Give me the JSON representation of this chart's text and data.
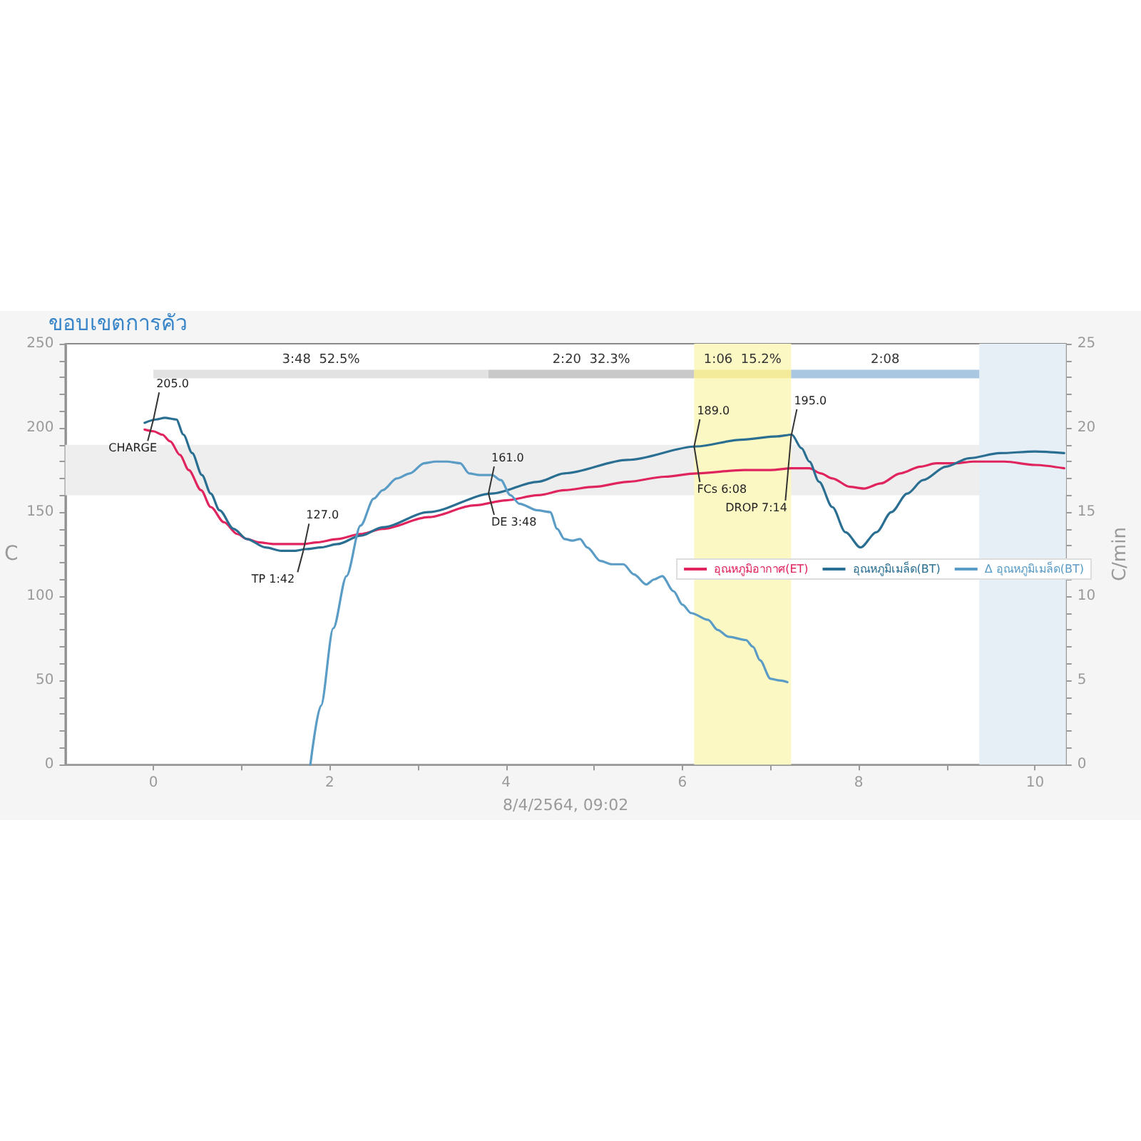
{
  "chart_data": {
    "type": "line",
    "title": "ขอบเขตการคั่ว",
    "xlabel": "8/4/2564, 09:02",
    "ylabel": "C",
    "y2label": "C/min",
    "xlim": [
      -1,
      10.35
    ],
    "xticks": [
      0,
      {
        "value": 1,
        "label": null
      },
      2,
      {
        "value": 3,
        "label": null
      },
      4,
      {
        "value": 5,
        "label": null
      },
      6,
      {
        "value": 7,
        "label": null
      },
      8,
      {
        "value": 9,
        "label": null
      },
      10
    ],
    "ylim": [
      0,
      250
    ],
    "yticks": [
      0,
      {
        "value": 10,
        "label": null
      },
      {
        "value": 20,
        "label": null
      },
      {
        "value": 30,
        "label": null
      },
      {
        "value": 40,
        "label": null
      },
      50,
      {
        "value": 60,
        "label": null
      },
      {
        "value": 70,
        "label": null
      },
      {
        "value": 80,
        "label": null
      },
      {
        "value": 90,
        "label": null
      },
      100,
      {
        "value": 110,
        "label": null
      },
      {
        "value": 120,
        "label": null
      },
      {
        "value": 130,
        "label": null
      },
      {
        "value": 140,
        "label": null
      },
      150,
      {
        "value": 160,
        "label": null
      },
      {
        "value": 170,
        "label": null
      },
      {
        "value": 180,
        "label": null
      },
      {
        "value": 190,
        "label": null
      },
      200,
      {
        "value": 210,
        "label": null
      },
      {
        "value": 220,
        "label": null
      },
      {
        "value": 230,
        "label": null
      },
      {
        "value": 240,
        "label": null
      },
      250
    ],
    "y2lim": [
      0,
      25
    ],
    "y2ticks": [
      0,
      {
        "value": 1,
        "label": null
      },
      {
        "value": 2,
        "label": null
      },
      {
        "value": 3,
        "label": null
      },
      {
        "value": 4,
        "label": null
      },
      5,
      {
        "value": 6,
        "label": null
      },
      {
        "value": 7,
        "label": null
      },
      {
        "value": 8,
        "label": null
      },
      {
        "value": 9,
        "label": null
      },
      10,
      {
        "value": 11,
        "label": null
      },
      {
        "value": 12,
        "label": null
      },
      {
        "value": 13,
        "label": null
      },
      {
        "value": 14,
        "label": null
      },
      15,
      {
        "value": 16,
        "label": null
      },
      {
        "value": 17,
        "label": null
      },
      {
        "value": 18,
        "label": null
      },
      {
        "value": 19,
        "label": null
      },
      20,
      {
        "value": 21,
        "label": null
      },
      {
        "value": 22,
        "label": null
      },
      {
        "value": 23,
        "label": null
      },
      {
        "value": 24,
        "label": null
      },
      25
    ],
    "legend": "right",
    "series": [
      {
        "name": "อุณหภูมิอากาศ(ET)",
        "color": "#e0245e",
        "x": [
          -0.1,
          0,
          0.1,
          0.19,
          0.3,
          0.4,
          0.54,
          0.65,
          0.8,
          0.95,
          1.06,
          1.2,
          1.37,
          1.55,
          1.7,
          1.85,
          2.09,
          2.35,
          2.6,
          3.12,
          3.64,
          4.0,
          4.36,
          4.66,
          5.0,
          5.38,
          5.8,
          6.16,
          6.7,
          7.0,
          7.24,
          7.44,
          7.57,
          7.7,
          7.9,
          8.06,
          8.25,
          8.47,
          8.7,
          8.88,
          9.1,
          9.3,
          9.65,
          10.0,
          10.33
        ],
        "values": [
          199,
          198,
          196,
          192,
          184,
          175,
          163,
          153,
          144,
          137,
          134,
          132,
          131,
          131,
          131,
          132,
          134,
          137,
          140,
          147,
          154,
          157,
          160,
          163,
          165,
          168,
          171,
          173,
          175,
          175,
          176,
          176,
          173,
          170,
          165,
          164,
          167,
          173,
          177,
          179,
          179,
          180,
          180,
          178,
          176
        ]
      },
      {
        "name": "อุณหภูมิเมล็ด(BT)",
        "color": "#2a6f92",
        "x": [
          -0.1,
          0.03,
          0.13,
          0.26,
          0.34,
          0.44,
          0.55,
          0.65,
          0.75,
          0.91,
          1.06,
          1.27,
          1.45,
          1.6,
          1.73,
          1.9,
          2.09,
          2.35,
          2.6,
          3.12,
          3.84,
          4.36,
          4.66,
          5.38,
          6.16,
          6.67,
          7.08,
          7.24,
          7.35,
          7.44,
          7.55,
          7.7,
          7.85,
          8.02,
          8.2,
          8.37,
          8.55,
          8.73,
          8.99,
          9.25,
          9.6,
          10.0,
          10.33
        ],
        "values": [
          203,
          205,
          206,
          205,
          196,
          185,
          172,
          161,
          151,
          140,
          134,
          129,
          127,
          127,
          128,
          129,
          131,
          136,
          141,
          150,
          161,
          168,
          173,
          181,
          189,
          193,
          195,
          196,
          188,
          180,
          168,
          153,
          138,
          129,
          138,
          150,
          161,
          169,
          177,
          182,
          185,
          186,
          185
        ]
      },
      {
        "name": "Δ อุณหภูมิเมล็ด(BT)",
        "color": "#5a9cc6",
        "axis": "y2",
        "x": [
          1.78,
          1.9,
          2.04,
          2.19,
          2.35,
          2.5,
          2.6,
          2.76,
          2.91,
          3.07,
          3.2,
          3.33,
          3.48,
          3.58,
          3.7,
          3.84,
          3.94,
          4.05,
          4.15,
          4.36,
          4.5,
          4.58,
          4.66,
          4.75,
          4.84,
          4.92,
          5.07,
          5.2,
          5.33,
          5.45,
          5.59,
          5.68,
          5.77,
          5.9,
          6.0,
          6.1,
          6.29,
          6.4,
          6.52,
          6.72,
          6.8,
          6.88,
          7.0,
          7.1,
          7.19
        ],
        "values": [
          0,
          3.5,
          8.1,
          11.2,
          14.2,
          15.8,
          16.3,
          17,
          17.3,
          17.9,
          18,
          18,
          17.9,
          17.3,
          17.2,
          17.2,
          16.9,
          16,
          15.5,
          15.1,
          15,
          14,
          13.4,
          13.3,
          13.4,
          12.9,
          12.1,
          11.9,
          11.9,
          11.3,
          10.7,
          11,
          11.2,
          10.3,
          9.5,
          9,
          8.6,
          8,
          7.6,
          7.4,
          7,
          6.2,
          5.1,
          5,
          4.9
        ]
      },
      {
        "color": "#e2e2e2",
        "x": [
          0,
          3.8
        ],
        "values": [
          232,
          232
        ]
      },
      {
        "color": "#c9c9c9",
        "x": [
          3.8,
          6.133
        ],
        "values": [
          232,
          232
        ]
      },
      {
        "color": "#f3eb9a",
        "x": [
          6.133,
          7.233
        ],
        "values": [
          232,
          232
        ]
      },
      {
        "color": "#a9c7e0",
        "x": [
          7.233,
          9.367
        ],
        "values": [
          232,
          232
        ]
      }
    ],
    "bands": [
      {
        "axis": "y",
        "from": 160,
        "to": 190,
        "color": "#eeeeee"
      },
      {
        "axis": "x",
        "from": 6.133,
        "to": 7.233,
        "color": "#fcf8c4"
      },
      {
        "axis": "x",
        "from": 9.367,
        "to": 10.35,
        "color": "#e6eef6"
      }
    ],
    "annotations": [
      {
        "text": "205.0",
        "x": 0,
        "y": 205
      },
      {
        "text": "CHARGE",
        "x": 0,
        "y": 205
      },
      {
        "text": "127.0",
        "x": 1.7,
        "y": 127
      },
      {
        "text": "TP 1:42",
        "x": 1.7,
        "y": 127
      },
      {
        "text": "161.0",
        "x": 3.8,
        "y": 161
      },
      {
        "text": "DE 3:48",
        "x": 3.8,
        "y": 161
      },
      {
        "text": "189.0",
        "x": 6.133,
        "y": 189
      },
      {
        "text": "FCs 6:08",
        "x": 6.133,
        "y": 189
      },
      {
        "text": "195.0",
        "x": 7.233,
        "y": 195
      },
      {
        "text": "DROP 7:14",
        "x": 7.233,
        "y": 195
      },
      "3:48  52.5%",
      "2:20  32.3%",
      "1:06  15.2%",
      "2:08"
    ]
  }
}
